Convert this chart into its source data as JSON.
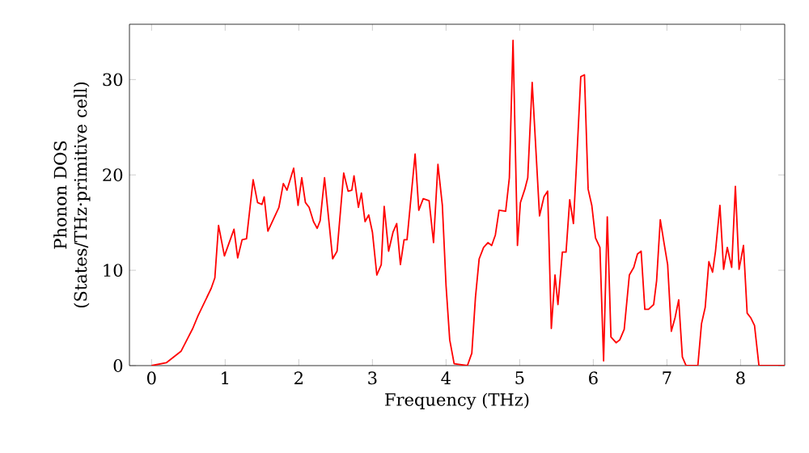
{
  "chart_data": {
    "type": "line",
    "xlabel": "Frequency (THz)",
    "ylabel": "Phonon DOS (States/THz·primitive cell)",
    "color": "#ff0000",
    "marker": "none",
    "line_style": "solid",
    "xlim": [
      -0.3,
      8.6
    ],
    "ylim": [
      0,
      35.8
    ],
    "xticks": [
      0,
      1,
      2,
      3,
      4,
      5,
      6,
      7,
      8
    ],
    "yticks": [
      0,
      10,
      20,
      30
    ],
    "x": [
      0,
      0.2,
      0.4,
      0.5,
      0.56,
      0.63,
      0.81,
      0.86,
      0.91,
      0.99,
      1.12,
      1.17,
      1.23,
      1.29,
      1.38,
      1.44,
      1.5,
      1.53,
      1.58,
      1.73,
      1.79,
      1.84,
      1.93,
      1.99,
      2.04,
      2.09,
      2.14,
      2.2,
      2.25,
      2.29,
      2.35,
      2.46,
      2.52,
      2.61,
      2.67,
      2.72,
      2.75,
      2.81,
      2.85,
      2.9,
      2.95,
      3.0,
      3.06,
      3.12,
      3.16,
      3.22,
      3.28,
      3.33,
      3.38,
      3.43,
      3.47,
      3.58,
      3.63,
      3.69,
      3.77,
      3.83,
      3.89,
      3.95,
      4.0,
      4.05,
      4.11,
      4.29,
      4.35,
      4.4,
      4.45,
      4.51,
      4.57,
      4.62,
      4.67,
      4.72,
      4.81,
      4.86,
      4.91,
      4.97,
      5.01,
      5.07,
      5.11,
      5.17,
      5.27,
      5.33,
      5.38,
      5.43,
      5.48,
      5.52,
      5.58,
      5.63,
      5.68,
      5.73,
      5.77,
      5.83,
      5.88,
      5.93,
      5.98,
      6.03,
      6.09,
      6.14,
      6.19,
      6.24,
      6.31,
      6.36,
      6.42,
      6.49,
      6.55,
      6.6,
      6.65,
      6.7,
      6.75,
      6.82,
      6.86,
      6.91,
      6.96,
      7.01,
      7.06,
      7.11,
      7.16,
      7.21,
      7.26,
      7.42,
      7.47,
      7.52,
      7.57,
      7.62,
      7.66,
      7.72,
      7.77,
      7.82,
      7.88,
      7.93,
      7.98,
      8.04,
      8.09,
      8.14,
      8.19,
      8.25,
      8.6
    ],
    "values": [
      0,
      0.3,
      1.5,
      3,
      3.9,
      5.2,
      8.1,
      9.2,
      14.7,
      11.5,
      14.3,
      11.3,
      13.2,
      13.3,
      19.5,
      17.1,
      16.9,
      17.7,
      14.1,
      16.6,
      19.1,
      18.4,
      20.7,
      16.8,
      19.7,
      17.1,
      16.6,
      15.1,
      14.4,
      15.2,
      19.7,
      11.2,
      12,
      20.2,
      18.3,
      18.4,
      19.9,
      16.6,
      18.1,
      15.1,
      15.8,
      14,
      9.5,
      10.6,
      16.7,
      12,
      14,
      14.9,
      10.6,
      13.2,
      13.2,
      22.2,
      16.3,
      17.5,
      17.3,
      12.9,
      21.1,
      16.8,
      8.4,
      2.7,
      0.2,
      0,
      1.3,
      7.2,
      11.2,
      12.4,
      12.9,
      12.6,
      13.7,
      16.3,
      16.2,
      19.7,
      34.1,
      12.6,
      17.1,
      18.5,
      19.7,
      29.7,
      15.7,
      17.7,
      18.3,
      3.9,
      9.5,
      6.4,
      11.9,
      11.9,
      17.4,
      14.9,
      20.8,
      30.3,
      30.5,
      18.5,
      16.8,
      13.4,
      12.4,
      0.5,
      15.6,
      3,
      2.4,
      2.7,
      3.8,
      9.5,
      10.3,
      11.7,
      12,
      5.9,
      5.9,
      6.4,
      8.9,
      15.3,
      12.9,
      10.6,
      3.6,
      5,
      6.9,
      0.9,
      0,
      0,
      4.4,
      6.1,
      10.9,
      9.8,
      12,
      16.8,
      10.1,
      12.4,
      10.3,
      18.8,
      10.1,
      12.6,
      5.5,
      5,
      4.2,
      0,
      0
    ]
  }
}
